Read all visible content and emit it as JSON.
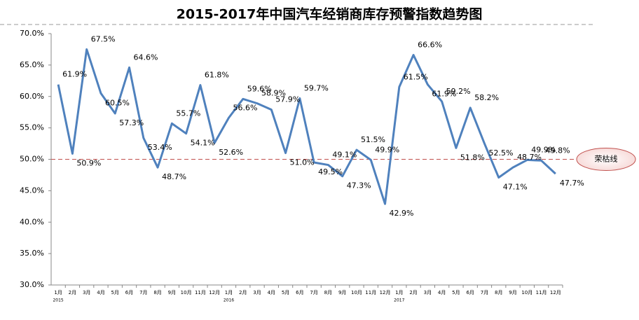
{
  "chart_data": {
    "type": "line",
    "title": "2015-2017年中国汽车经销商库存预警指数趋势图",
    "categories": [
      "1月",
      "2月",
      "3月",
      "4月",
      "5月",
      "6月",
      "7月",
      "8月",
      "9月",
      "10月",
      "11月",
      "12月",
      "1月",
      "2月",
      "3月",
      "4月",
      "5月",
      "6月",
      "7月",
      "8月",
      "9月",
      "10月",
      "11月",
      "12月",
      "1月",
      "2月",
      "3月",
      "4月",
      "5月",
      "6月",
      "7月",
      "8月",
      "9月",
      "10月",
      "11月",
      "12月"
    ],
    "years": [
      "2015",
      "2016",
      "2017"
    ],
    "series": [
      {
        "name": "库存预警指数",
        "color": "#4f81bd",
        "values": [
          61.9,
          50.9,
          67.5,
          60.5,
          57.3,
          64.6,
          53.4,
          48.7,
          55.7,
          54.1,
          61.8,
          52.6,
          56.6,
          59.6,
          58.9,
          57.9,
          51.0,
          59.7,
          49.5,
          49.1,
          47.3,
          51.5,
          49.9,
          42.9,
          61.5,
          66.6,
          61.9,
          59.2,
          51.8,
          58.2,
          52.5,
          47.1,
          48.7,
          49.9,
          49.8,
          47.7
        ],
        "value_labels": [
          "61.9%",
          "50.9%",
          "67.5%",
          "60.5%",
          "57.3%",
          "64.6%",
          "53.4%",
          "48.7%",
          "55.7%",
          "54.1%",
          "61.8%",
          "52.6%",
          "56.6%",
          "59.6%",
          "58.9%",
          "57.9%",
          "51.0%",
          "59.7%",
          "49.5%",
          "49.1%",
          "47.3%",
          "51.5%",
          "49.9%",
          "42.9%",
          "61.5%",
          "66.6%",
          "61.9%",
          "59.2%",
          "51.8%",
          "58.2%",
          "52.5%",
          "47.1%",
          "48.7%",
          "49.9%",
          "49.8%",
          "47.7%"
        ]
      }
    ],
    "reference_line": {
      "value": 50,
      "label": "荣枯线",
      "color": "#c0504d"
    },
    "ylim": [
      30,
      70
    ],
    "yticks": [
      {
        "value": 30,
        "label": "30.0%"
      },
      {
        "value": 35,
        "label": "35.0%"
      },
      {
        "value": 40,
        "label": "40.0%"
      },
      {
        "value": 45,
        "label": "45.0%"
      },
      {
        "value": 50,
        "label": "50.0%"
      },
      {
        "value": 55,
        "label": "55.0%"
      },
      {
        "value": 60,
        "label": "60.0%"
      },
      {
        "value": 65,
        "label": "65.0%"
      },
      {
        "value": 70,
        "label": "70.0%"
      }
    ],
    "grid": false
  }
}
